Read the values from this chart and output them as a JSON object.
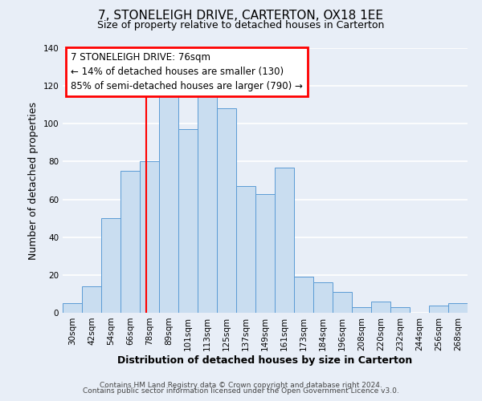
{
  "title": "7, STONELEIGH DRIVE, CARTERTON, OX18 1EE",
  "subtitle": "Size of property relative to detached houses in Carterton",
  "xlabel": "Distribution of detached houses by size in Carterton",
  "ylabel": "Number of detached properties",
  "categories": [
    "30sqm",
    "42sqm",
    "54sqm",
    "66sqm",
    "78sqm",
    "89sqm",
    "101sqm",
    "113sqm",
    "125sqm",
    "137sqm",
    "149sqm",
    "161sqm",
    "173sqm",
    "184sqm",
    "196sqm",
    "208sqm",
    "220sqm",
    "232sqm",
    "244sqm",
    "256sqm",
    "268sqm"
  ],
  "values": [
    5,
    14,
    50,
    75,
    80,
    118,
    97,
    115,
    108,
    67,
    63,
    77,
    19,
    16,
    11,
    3,
    6,
    3,
    0,
    4,
    5
  ],
  "bar_color": "#c9ddf0",
  "bar_edge_color": "#5b9bd5",
  "bar_width": 1.0,
  "ylim": [
    0,
    140
  ],
  "yticks": [
    0,
    20,
    40,
    60,
    80,
    100,
    120,
    140
  ],
  "red_line_x": 3.83,
  "red_line_label": "7 STONELEIGH DRIVE: 76sqm",
  "annotation_line1": "← 14% of detached houses are smaller (130)",
  "annotation_line2": "85% of semi-detached houses are larger (790) →",
  "footer_line1": "Contains HM Land Registry data © Crown copyright and database right 2024.",
  "footer_line2": "Contains public sector information licensed under the Open Government Licence v3.0.",
  "background_color": "#e8eef7",
  "plot_background_color": "#e8eef7",
  "grid_color": "#ffffff",
  "title_fontsize": 11,
  "subtitle_fontsize": 9,
  "axis_label_fontsize": 9,
  "tick_fontsize": 7.5,
  "footer_fontsize": 6.5,
  "annotation_fontsize": 8.5
}
